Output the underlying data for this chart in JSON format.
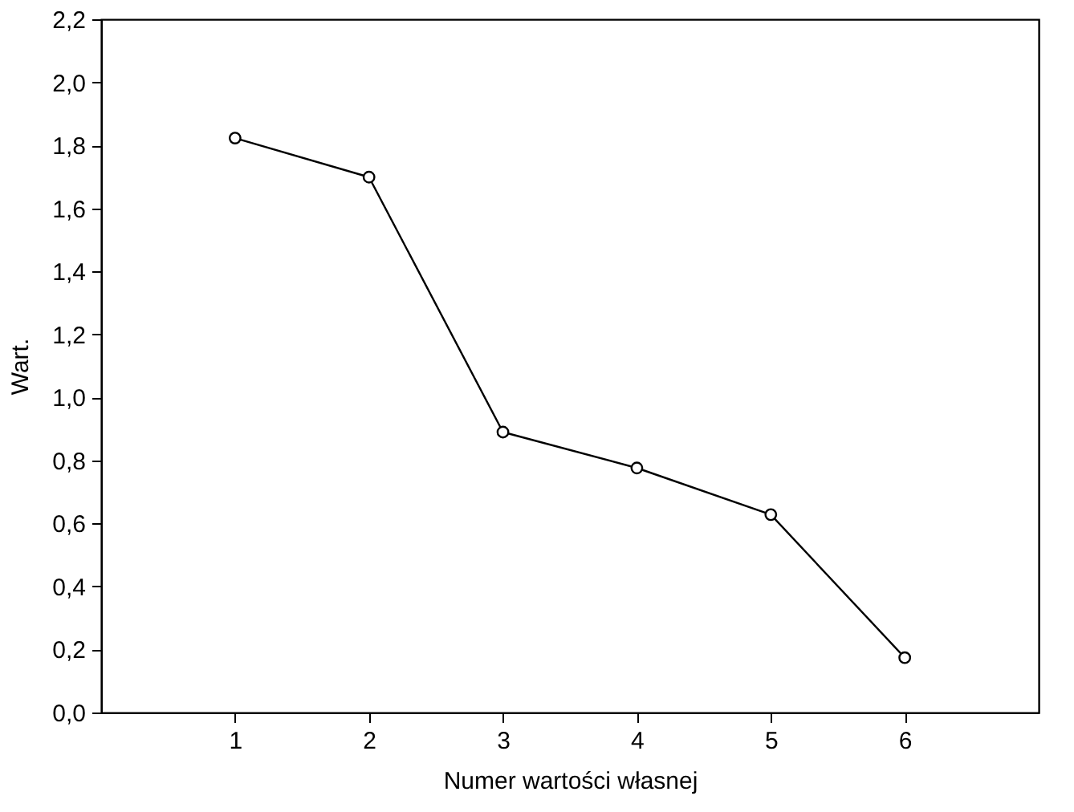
{
  "chart_data": {
    "type": "line",
    "xlabel": "Numer wartości własnej",
    "ylabel": "Wart.",
    "x": [
      1,
      2,
      3,
      4,
      5,
      6
    ],
    "series": [
      {
        "color": "#000000",
        "values": [
          1.823,
          1.699,
          0.89,
          0.776,
          0.628,
          0.174
        ]
      }
    ],
    "xlim": [
      0,
      7
    ],
    "xticks": [
      1,
      2,
      3,
      4,
      5,
      6
    ],
    "ylim": [
      0,
      2.2
    ],
    "yticks": [
      {
        "value": 0,
        "label": "0,0"
      },
      {
        "value": 0.2,
        "label": "0,2"
      },
      {
        "value": 0.4,
        "label": "0,4"
      },
      {
        "value": 0.6,
        "label": "0,6"
      },
      {
        "value": 0.8,
        "label": "0,8"
      },
      {
        "value": 1.0,
        "label": "1,0"
      },
      {
        "value": 1.2,
        "label": "1,2"
      },
      {
        "value": 1.4,
        "label": "1,4"
      },
      {
        "value": 1.6,
        "label": "1,6"
      },
      {
        "value": 1.8,
        "label": "1,8"
      },
      {
        "value": 2.0,
        "label": "2,0"
      },
      {
        "value": 2.2,
        "label": "2,2"
      }
    ],
    "grid": false,
    "marker": "circle",
    "line_style": "solid"
  }
}
